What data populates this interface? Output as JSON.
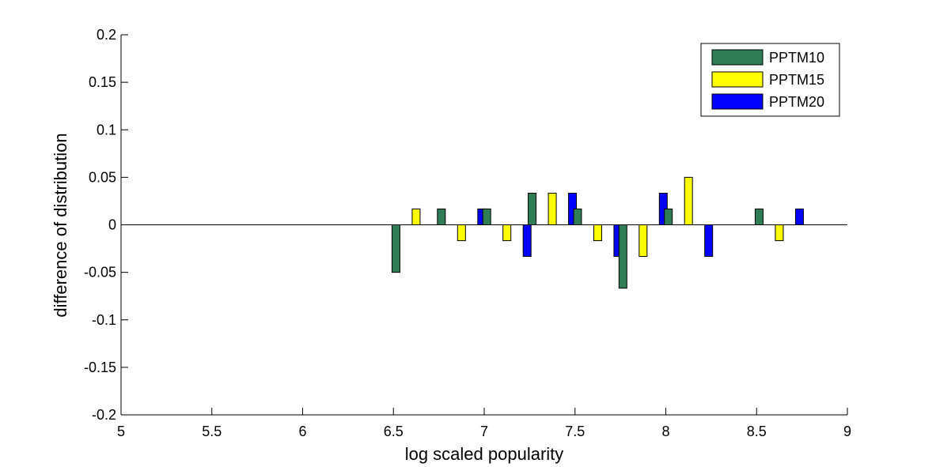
{
  "chart_data": {
    "type": "bar",
    "xlabel": "log scaled popularity",
    "ylabel": "difference of distribution",
    "xlim": [
      5,
      9
    ],
    "ylim": [
      -0.2,
      0.2
    ],
    "xticks": [
      "5",
      "5.5",
      "6",
      "6.5",
      "7",
      "7.5",
      "8",
      "8.5",
      "9"
    ],
    "yticks": [
      "-0.2",
      "-0.15",
      "-0.1",
      "-0.05",
      "0",
      "0.05",
      "0.1",
      "0.15",
      "0.2"
    ],
    "x": [
      6.625,
      6.875,
      7.125,
      7.375,
      7.625,
      7.875,
      8.125,
      8.625
    ],
    "series": [
      {
        "name": "PPTM10",
        "color": "#2e7d55",
        "values": [
          -0.05,
          0.0167,
          0.0167,
          0.0333,
          0.0167,
          -0.0667,
          0.0167,
          0.0167
        ]
      },
      {
        "name": "PPTM15",
        "color": "#ffff00",
        "values": [
          0.0167,
          -0.0167,
          -0.0167,
          0.0333,
          -0.0167,
          -0.0333,
          0.05,
          -0.0167
        ]
      },
      {
        "name": "PPTM20",
        "color": "#0000ff",
        "values": [
          0,
          0.0167,
          -0.0333,
          0.0333,
          -0.0333,
          0.0333,
          -0.0333,
          0.0167
        ]
      }
    ],
    "legend_position": "top-right",
    "grid": false
  }
}
